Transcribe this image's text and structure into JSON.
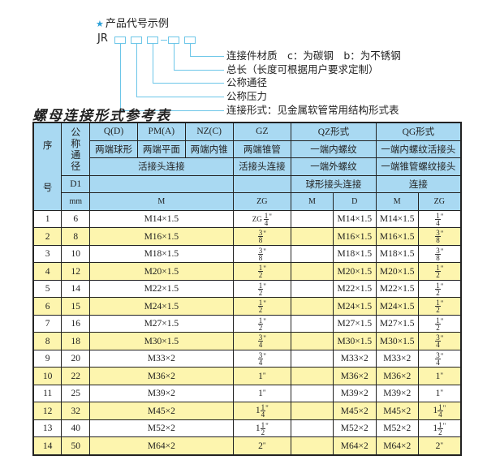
{
  "legend": {
    "title": "产品代号示例",
    "code_prefix": "JR",
    "labels": [
      "连接件材质　c：为碳钢　b：为不锈钢",
      "总长（长度可根据用户要求定制）",
      "公称通径",
      "公称压力",
      "连接形式：见金属软管常用结构形式表"
    ]
  },
  "title": "螺母连接形式参考表",
  "header": {
    "seq_top": "序",
    "seq_bottom": "号",
    "dn": "公称通径",
    "qd": "Q(D)",
    "pm": "PM(A)",
    "nz": "NZ(C)",
    "gz": "GZ",
    "qz": "QZ形式",
    "qg": "QG形式",
    "r2": [
      "两端球形",
      "两端平面",
      "两端内锥",
      "两端锥管",
      "一端内螺纹",
      "一端内螺纹活接头"
    ],
    "r3": [
      "活接头连接",
      "活接头连接",
      "一端外螺纹",
      "一端锥管螺纹接头"
    ],
    "d1": "D1",
    "qz_r4": "球形接头连接",
    "qg_r4": "连接",
    "mm": "mm",
    "m": "M",
    "zg": "ZG",
    "qz_m": "M",
    "qz_d": "D",
    "qg_m": "M",
    "qg_zg": "ZG"
  },
  "colors": {
    "header_bg": "#a9d9f2",
    "alt_row_bg": "#fdf5ae",
    "accent": "#2a9fd6"
  },
  "rows": [
    {
      "no": "1",
      "d1": "6",
      "m": "M14×1.5",
      "zg": {
        "pre": "ZG",
        "whole": "",
        "num": "1",
        "den": "4"
      },
      "qz_m": "",
      "qz_d": "M14×1.5",
      "qg_m": "M14×1.5",
      "qg_zg": {
        "whole": "",
        "num": "1",
        "den": "4"
      }
    },
    {
      "no": "2",
      "d1": "8",
      "m": "M16×1.5",
      "zg": {
        "whole": "",
        "num": "3",
        "den": "8"
      },
      "qz_m": "",
      "qz_d": "M16×1.5",
      "qg_m": "M16×1.5",
      "qg_zg": {
        "whole": "",
        "num": "3",
        "den": "8"
      }
    },
    {
      "no": "3",
      "d1": "10",
      "m": "M18×1.5",
      "zg": {
        "whole": "",
        "num": "3",
        "den": "8"
      },
      "qz_m": "",
      "qz_d": "M18×1.5",
      "qg_m": "M18×1.5",
      "qg_zg": {
        "whole": "",
        "num": "3",
        "den": "8"
      }
    },
    {
      "no": "4",
      "d1": "12",
      "m": "M20×1.5",
      "zg": {
        "whole": "",
        "num": "1",
        "den": "2"
      },
      "qz_m": "",
      "qz_d": "M20×1.5",
      "qg_m": "M20×1.5",
      "qg_zg": {
        "whole": "",
        "num": "1",
        "den": "2"
      }
    },
    {
      "no": "5",
      "d1": "14",
      "m": "M22×1.5",
      "zg": {
        "whole": "",
        "num": "1",
        "den": "2"
      },
      "qz_m": "",
      "qz_d": "M22×1.5",
      "qg_m": "M22×1.5",
      "qg_zg": {
        "whole": "",
        "num": "1",
        "den": "2"
      }
    },
    {
      "no": "6",
      "d1": "15",
      "m": "M24×1.5",
      "zg": {
        "whole": "",
        "num": "1",
        "den": "2"
      },
      "qz_m": "",
      "qz_d": "M24×1.5",
      "qg_m": "M24×1.5",
      "qg_zg": {
        "whole": "",
        "num": "1",
        "den": "2"
      }
    },
    {
      "no": "7",
      "d1": "16",
      "m": "M27×1.5",
      "zg": {
        "whole": "",
        "num": "1",
        "den": "2"
      },
      "qz_m": "",
      "qz_d": "M27×1.5",
      "qg_m": "M27×1.5",
      "qg_zg": {
        "whole": "",
        "num": "1",
        "den": "2"
      }
    },
    {
      "no": "8",
      "d1": "18",
      "m": "M30×1.5",
      "zg": {
        "whole": "",
        "num": "3",
        "den": "4"
      },
      "qz_m": "",
      "qz_d": "M30×1.5",
      "qg_m": "M30×1.5",
      "qg_zg": {
        "whole": "",
        "num": "3",
        "den": "4"
      }
    },
    {
      "no": "9",
      "d1": "20",
      "m": "M33×2",
      "zg": {
        "whole": "",
        "num": "3",
        "den": "4"
      },
      "qz_m": "",
      "qz_d": "M33×2",
      "qg_m": "M33×2",
      "qg_zg": {
        "whole": "",
        "num": "3",
        "den": "4"
      }
    },
    {
      "no": "10",
      "d1": "22",
      "m": "M36×2",
      "zg": {
        "whole": "1"
      },
      "qz_m": "",
      "qz_d": "M36×2",
      "qg_m": "M36×2",
      "qg_zg": {
        "whole": "1"
      }
    },
    {
      "no": "11",
      "d1": "25",
      "m": "M39×2",
      "zg": {
        "whole": "1"
      },
      "qz_m": "",
      "qz_d": "M39×2",
      "qg_m": "M39×2",
      "qg_zg": {
        "whole": "1"
      }
    },
    {
      "no": "12",
      "d1": "32",
      "m": "M45×2",
      "zg": {
        "whole": "1",
        "num": "1",
        "den": "4"
      },
      "qz_m": "",
      "qz_d": "M45×2",
      "qg_m": "M45×2",
      "qg_zg": {
        "whole": "1",
        "num": "1",
        "den": "4"
      }
    },
    {
      "no": "13",
      "d1": "40",
      "m": "M52×2",
      "zg": {
        "whole": "1",
        "num": "1",
        "den": "2"
      },
      "qz_m": "",
      "qz_d": "M52×2",
      "qg_m": "M52×2",
      "qg_zg": {
        "whole": "1",
        "num": "1",
        "den": "2"
      }
    },
    {
      "no": "14",
      "d1": "50",
      "m": "M64×2",
      "zg": {
        "whole": "2"
      },
      "qz_m": "",
      "qz_d": "M64×2",
      "qg_m": "M64×2",
      "qg_zg": {
        "whole": "2"
      }
    }
  ]
}
